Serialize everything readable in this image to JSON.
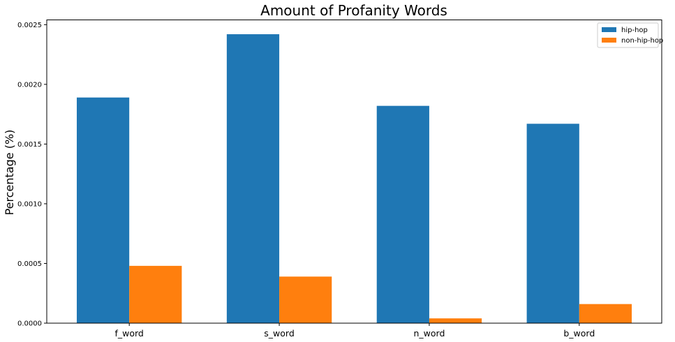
{
  "chart_data": {
    "type": "bar",
    "title": "Amount of Profanity Words",
    "xlabel": "",
    "ylabel": "Percentage (%)",
    "categories": [
      "f_word",
      "s_word",
      "n_word",
      "b_word"
    ],
    "series": [
      {
        "name": "hip-hop",
        "color": "#1f77b4",
        "values": [
          0.00189,
          0.00242,
          0.00182,
          0.00167
        ]
      },
      {
        "name": "non-hip-hop",
        "color": "#ff7f0e",
        "values": [
          0.00048,
          0.00039,
          4e-05,
          0.00016
        ]
      }
    ],
    "ylim": [
      0,
      0.00254
    ],
    "yticks": [
      0.0,
      0.0005,
      0.001,
      0.0015,
      0.002,
      0.0025
    ],
    "ytick_labels": [
      "0.0000",
      "0.0005",
      "0.0010",
      "0.0015",
      "0.0020",
      "0.0025"
    ],
    "grid": false,
    "legend_position": "top-right"
  }
}
